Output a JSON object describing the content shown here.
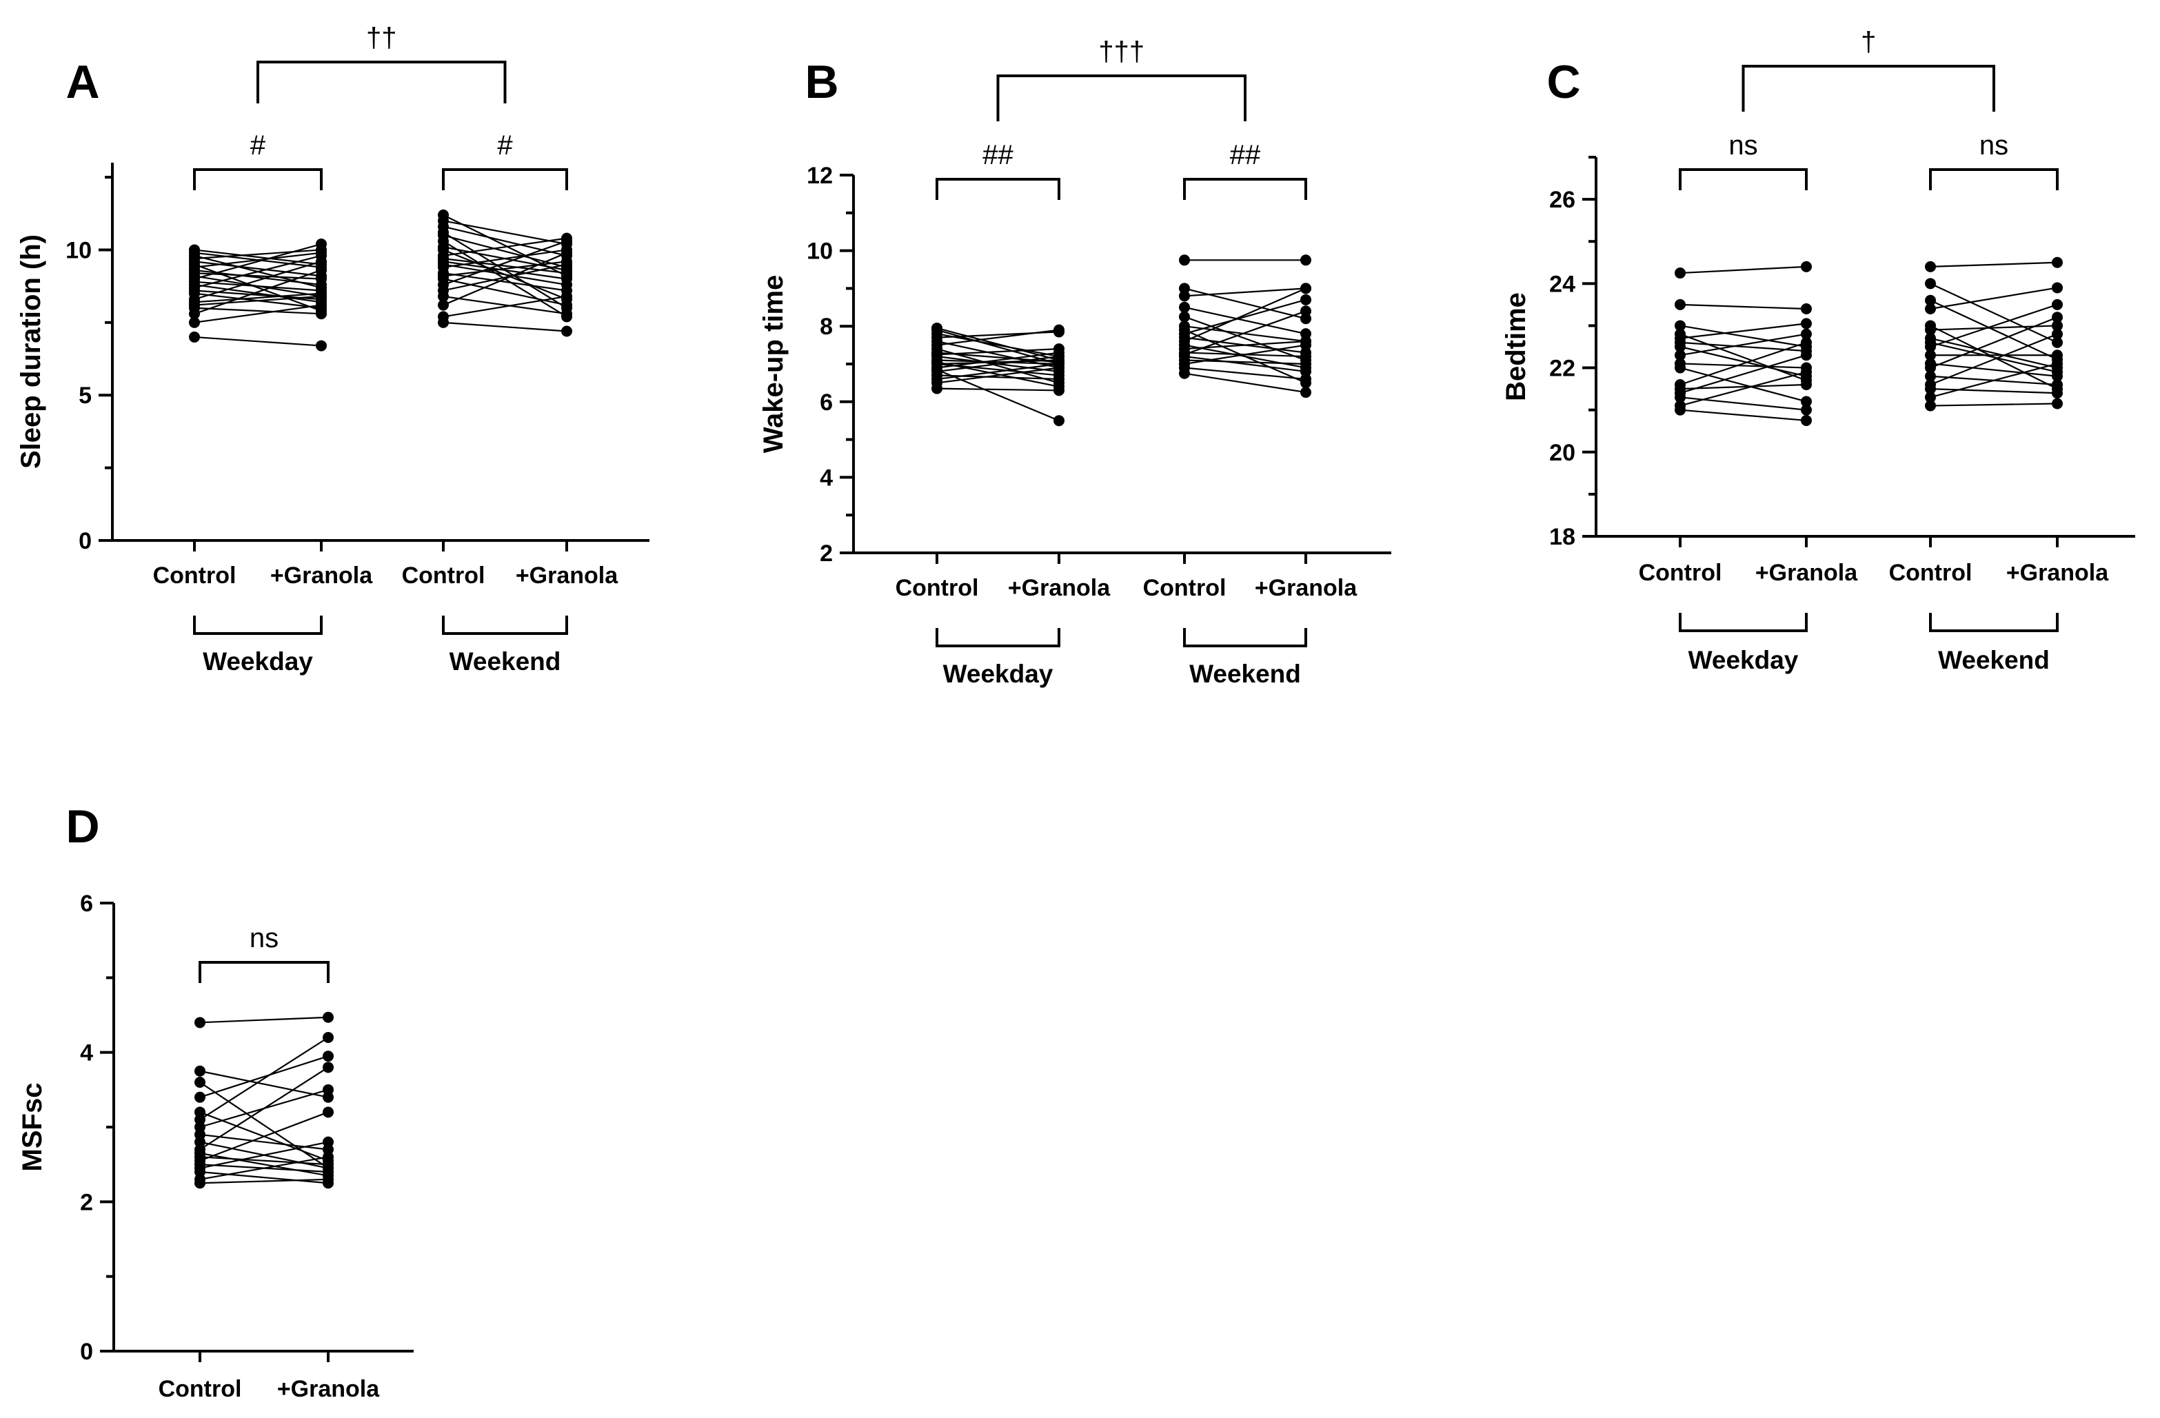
{
  "chart_data": [
    {
      "id": "A",
      "type": "scatter",
      "subtype": "paired-dot",
      "panel_letter": "A",
      "ylabel": "Sleep duration (h)",
      "ylim": [
        0,
        13
      ],
      "yticks": [
        0,
        5,
        10
      ],
      "categories": [
        "Control",
        "+Granola",
        "Control",
        "+Granola"
      ],
      "groups": [
        {
          "label": "Weekday",
          "from": 0,
          "to": 1
        },
        {
          "label": "Weekend",
          "from": 2,
          "to": 3
        }
      ],
      "significance": [
        {
          "label": "#",
          "between": [
            0,
            1
          ],
          "level": 0
        },
        {
          "label": "#",
          "between": [
            2,
            3
          ],
          "level": 0
        },
        {
          "label": "††",
          "between": [
            0.5,
            2.5
          ],
          "level": 1
        }
      ],
      "pairs": [
        {
          "between": [
            0,
            1
          ],
          "control": [
            7.0,
            7.5,
            7.8,
            8.0,
            8.1,
            8.2,
            8.3,
            8.5,
            8.6,
            8.7,
            8.8,
            8.9,
            9.0,
            9.1,
            9.2,
            9.3,
            9.4,
            9.5,
            9.6,
            9.7,
            9.8,
            9.9,
            10.0
          ],
          "treatment": [
            6.7,
            8.1,
            9.3,
            7.8,
            8.4,
            8.5,
            9.6,
            8.0,
            8.3,
            9.8,
            8.2,
            8.6,
            10.2,
            8.4,
            9.0,
            8.8,
            9.9,
            7.9,
            9.1,
            10.0,
            8.7,
            9.4,
            9.5
          ]
        },
        {
          "between": [
            2,
            3
          ],
          "control": [
            7.5,
            7.7,
            8.1,
            8.4,
            8.6,
            8.8,
            9.0,
            9.1,
            9.2,
            9.4,
            9.5,
            9.6,
            9.7,
            9.8,
            10.0,
            10.1,
            10.3,
            10.5,
            10.6,
            10.8,
            11.0,
            11.2
          ],
          "treatment": [
            7.2,
            8.4,
            9.9,
            7.8,
            9.5,
            10.3,
            8.1,
            9.6,
            8.6,
            10.0,
            8.8,
            9.0,
            9.2,
            10.4,
            8.3,
            9.3,
            7.7,
            9.4,
            8.0,
            9.8,
            10.2,
            9.1
          ]
        }
      ]
    },
    {
      "id": "B",
      "type": "scatter",
      "subtype": "paired-dot",
      "panel_letter": "B",
      "ylabel": "Wake-up time",
      "ylim": [
        2,
        12
      ],
      "yticks": [
        2,
        4,
        6,
        8,
        10,
        12
      ],
      "categories": [
        "Control",
        "+Granola",
        "Control",
        "+Granola"
      ],
      "groups": [
        {
          "label": "Weekday",
          "from": 0,
          "to": 1
        },
        {
          "label": "Weekend",
          "from": 2,
          "to": 3
        }
      ],
      "significance": [
        {
          "label": "##",
          "between": [
            0,
            1
          ],
          "level": 0
        },
        {
          "label": "##",
          "between": [
            2,
            3
          ],
          "level": 0
        },
        {
          "label": "†††",
          "between": [
            0.5,
            2.5
          ],
          "level": 1
        }
      ],
      "pairs": [
        {
          "between": [
            0,
            1
          ],
          "control": [
            6.35,
            6.5,
            6.6,
            6.7,
            6.8,
            6.85,
            6.9,
            7.0,
            7.0,
            7.05,
            7.1,
            7.2,
            7.25,
            7.3,
            7.4,
            7.5,
            7.6,
            7.7,
            7.8,
            7.9,
            7.95
          ],
          "treatment": [
            6.3,
            6.9,
            7.0,
            6.6,
            7.2,
            5.5,
            7.3,
            6.7,
            7.1,
            6.4,
            7.0,
            6.8,
            7.4,
            7.05,
            6.5,
            7.9,
            6.9,
            7.85,
            7.2,
            7.0,
            7.1
          ]
        },
        {
          "between": [
            2,
            3
          ],
          "control": [
            6.75,
            6.9,
            7.0,
            7.1,
            7.2,
            7.25,
            7.3,
            7.4,
            7.5,
            7.6,
            7.7,
            7.8,
            7.9,
            8.0,
            8.25,
            8.5,
            8.8,
            9.0,
            9.75
          ],
          "treatment": [
            6.25,
            6.6,
            7.5,
            7.0,
            6.8,
            8.4,
            7.2,
            7.6,
            6.9,
            9.0,
            7.3,
            8.7,
            6.5,
            7.6,
            7.1,
            7.8,
            9.0,
            8.2,
            9.75
          ]
        }
      ]
    },
    {
      "id": "C",
      "type": "scatter",
      "subtype": "paired-dot",
      "panel_letter": "C",
      "ylabel": "Bedtime",
      "ylim": [
        18,
        27
      ],
      "yticks": [
        18,
        20,
        22,
        24,
        26
      ],
      "categories": [
        "Control",
        "+Granola",
        "Control",
        "+Granola"
      ],
      "groups": [
        {
          "label": "Weekday",
          "from": 0,
          "to": 1
        },
        {
          "label": "Weekend",
          "from": 2,
          "to": 3
        }
      ],
      "significance": [
        {
          "label": "ns",
          "between": [
            0,
            1
          ],
          "level": 0
        },
        {
          "label": "ns",
          "between": [
            2,
            3
          ],
          "level": 0
        },
        {
          "label": "†",
          "between": [
            0.5,
            2.5
          ],
          "level": 1
        }
      ],
      "pairs": [
        {
          "between": [
            0,
            1
          ],
          "control": [
            21.0,
            21.1,
            21.3,
            21.4,
            21.5,
            21.6,
            22.0,
            22.1,
            22.3,
            22.5,
            22.6,
            22.7,
            22.8,
            23.0,
            23.5,
            24.25
          ],
          "treatment": [
            20.75,
            21.9,
            21.0,
            22.3,
            21.6,
            22.6,
            21.2,
            22.0,
            22.8,
            21.8,
            22.4,
            23.05,
            21.7,
            22.5,
            23.4,
            24.4
          ]
        },
        {
          "between": [
            2,
            3
          ],
          "control": [
            21.1,
            21.3,
            21.5,
            21.6,
            21.8,
            22.0,
            22.1,
            22.3,
            22.5,
            22.6,
            22.7,
            22.9,
            23.0,
            23.4,
            23.6,
            24.0,
            24.4
          ],
          "treatment": [
            21.15,
            22.1,
            21.4,
            22.8,
            21.6,
            23.2,
            21.8,
            22.3,
            23.5,
            21.9,
            22.0,
            23.0,
            21.5,
            23.9,
            22.2,
            22.6,
            24.5
          ]
        }
      ]
    },
    {
      "id": "D",
      "type": "scatter",
      "subtype": "paired-dot",
      "panel_letter": "D",
      "ylabel": "MSFsc",
      "ylim": [
        0,
        6
      ],
      "yticks": [
        0,
        2,
        4,
        6
      ],
      "categories": [
        "Control",
        "+Granola"
      ],
      "groups": [],
      "significance": [
        {
          "label": "ns",
          "between": [
            0,
            1
          ],
          "level": 0
        }
      ],
      "pairs": [
        {
          "between": [
            0,
            1
          ],
          "control": [
            2.25,
            2.3,
            2.4,
            2.45,
            2.5,
            2.55,
            2.6,
            2.65,
            2.7,
            2.8,
            2.9,
            3.0,
            3.1,
            3.2,
            3.4,
            3.6,
            3.75,
            4.4
          ],
          "treatment": [
            2.3,
            2.6,
            2.25,
            2.8,
            2.4,
            3.2,
            2.5,
            2.35,
            3.8,
            2.45,
            2.7,
            3.5,
            4.2,
            2.55,
            3.95,
            2.45,
            3.4,
            4.47
          ]
        }
      ]
    }
  ]
}
